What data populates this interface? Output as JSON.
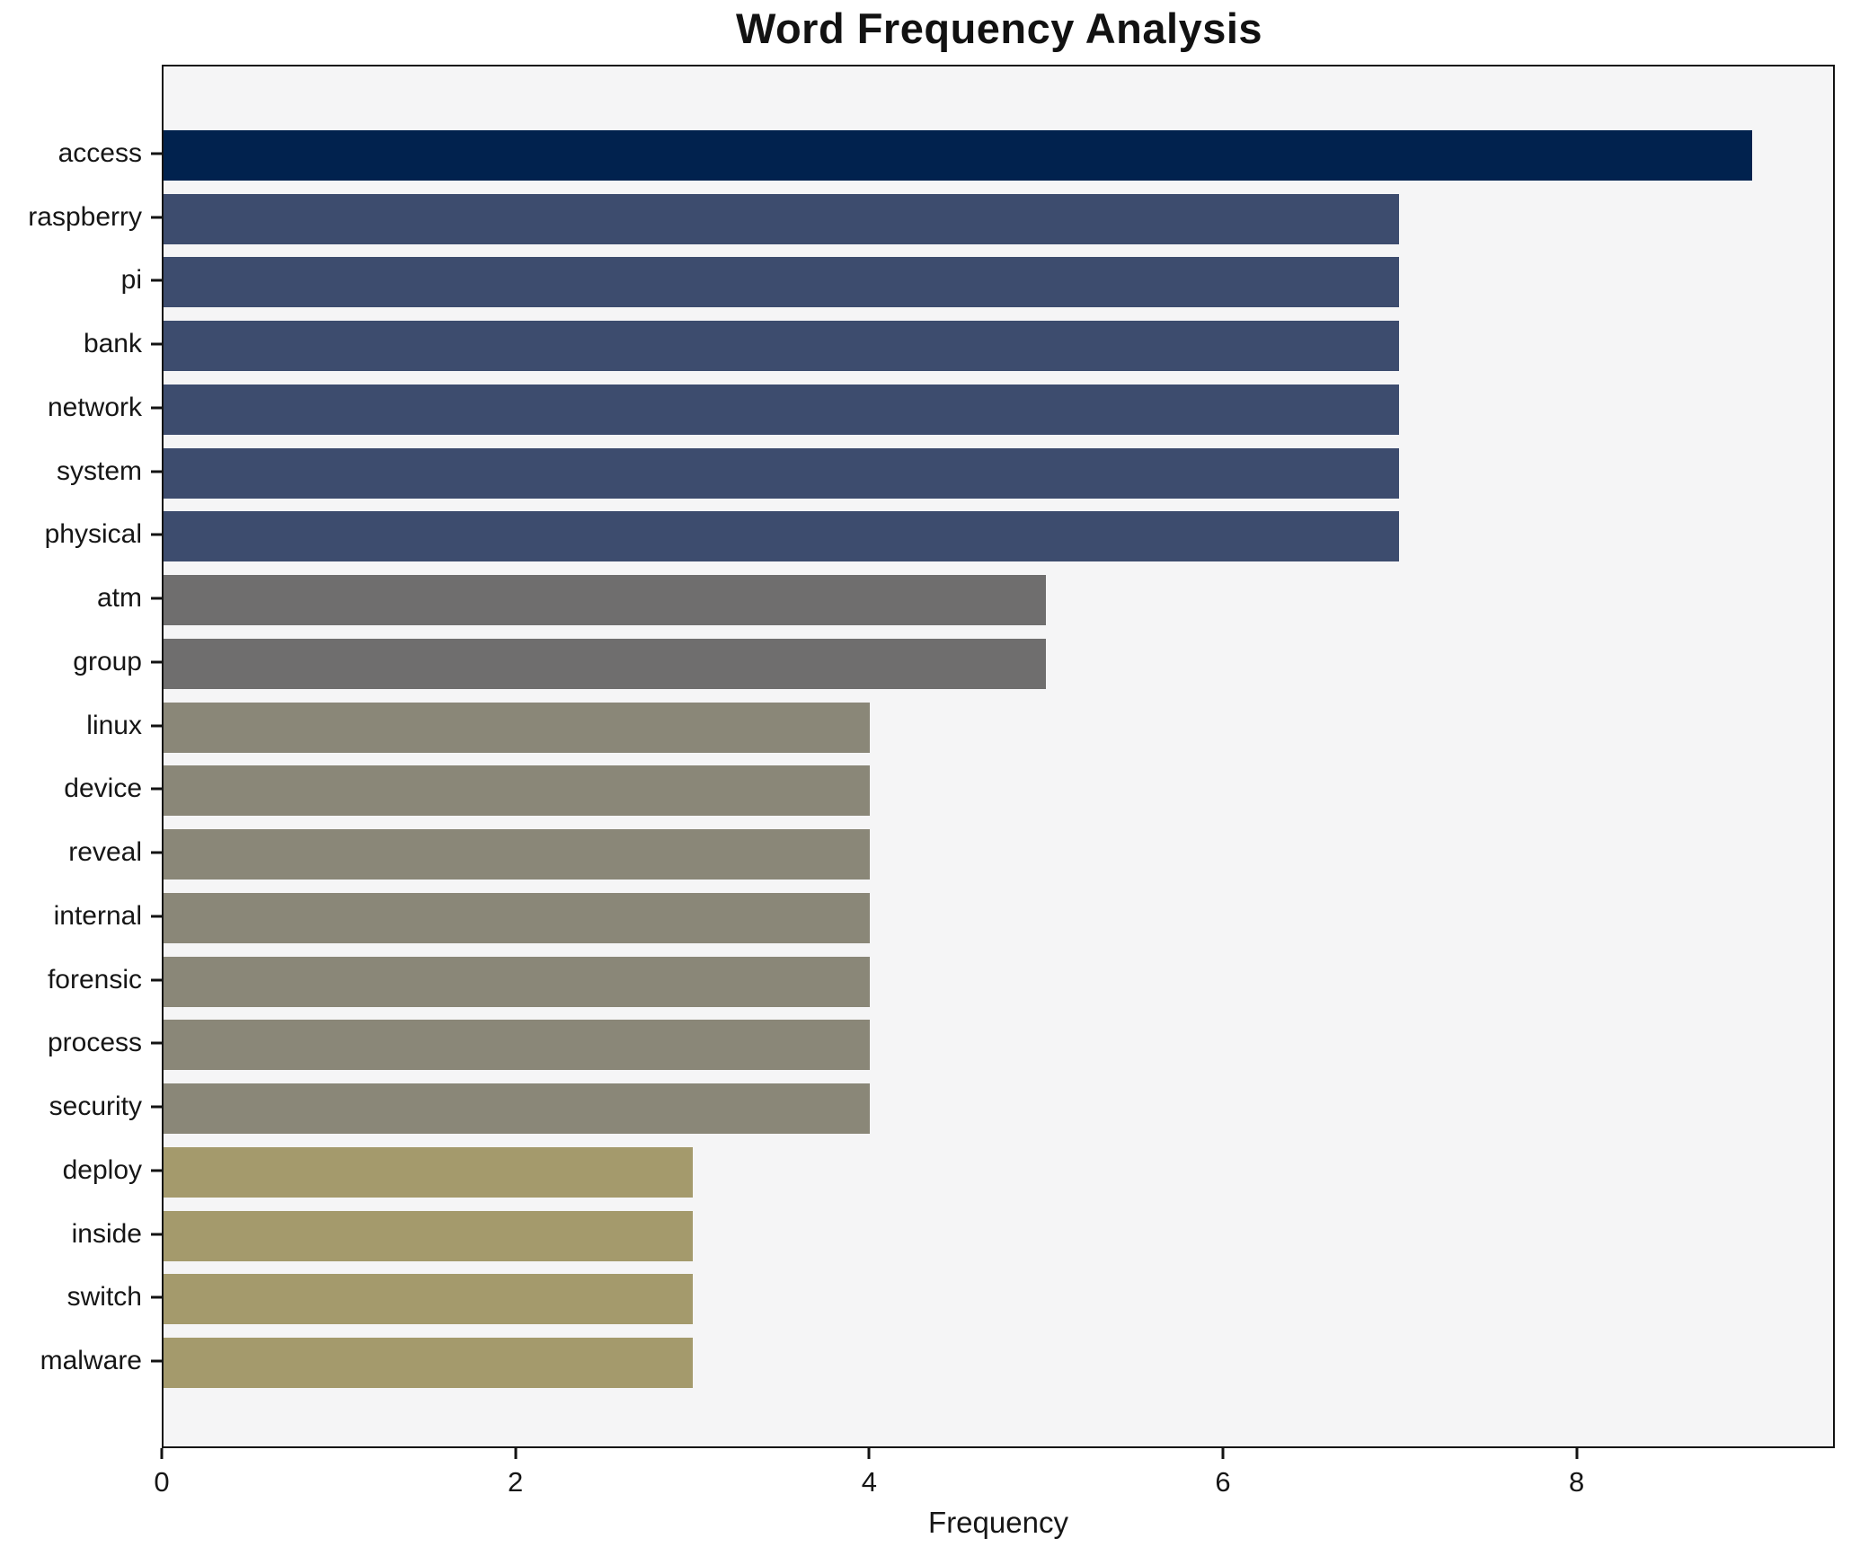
{
  "title": "Word Frequency Analysis",
  "chart_data": {
    "type": "bar",
    "orientation": "horizontal",
    "title": "Word Frequency Analysis",
    "xlabel": "Frequency",
    "ylabel": "",
    "categories": [
      "access",
      "raspberry",
      "pi",
      "bank",
      "network",
      "system",
      "physical",
      "atm",
      "group",
      "linux",
      "device",
      "reveal",
      "internal",
      "forensic",
      "process",
      "security",
      "deploy",
      "inside",
      "switch",
      "malware"
    ],
    "values": [
      9,
      7,
      7,
      7,
      7,
      7,
      7,
      5,
      5,
      4,
      4,
      4,
      4,
      4,
      4,
      4,
      3,
      3,
      3,
      3
    ],
    "bar_colors": [
      "#01224e",
      "#3d4c6e",
      "#3d4c6e",
      "#3d4c6e",
      "#3d4c6e",
      "#3d4c6e",
      "#3d4c6e",
      "#6f6e6e",
      "#6f6e6e",
      "#8a8778",
      "#8a8778",
      "#8a8778",
      "#8a8778",
      "#8a8778",
      "#8a8778",
      "#8a8778",
      "#a49a6c",
      "#a49a6c",
      "#a49a6c",
      "#a49a6c"
    ],
    "xlim": [
      0,
      9.46
    ],
    "xticks": [
      0,
      2,
      4,
      6,
      8
    ],
    "xtick_labels": [
      "0",
      "2",
      "4",
      "6",
      "8"
    ],
    "grid": false,
    "legend": null,
    "plot_background": "#f5f5f6",
    "figure_background": "#ffffff",
    "axis_color": "#131313",
    "text_color": "#161616"
  }
}
